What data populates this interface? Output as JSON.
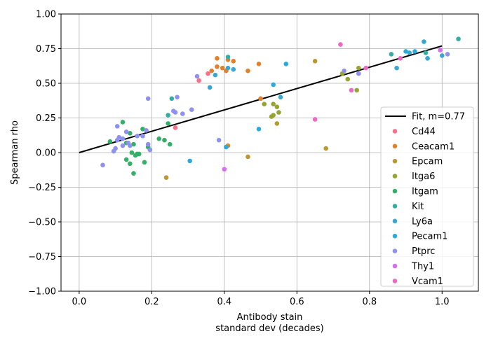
{
  "chart_data": {
    "type": "scatter",
    "title": "",
    "xlabel_lines": [
      "Antibody stain",
      "standard dev (decades)"
    ],
    "ylabel": "Spearman rho",
    "xlim": [
      -0.05,
      1.1
    ],
    "ylim": [
      -1.0,
      1.0
    ],
    "x_ticks": [
      0.0,
      0.2,
      0.4,
      0.6,
      0.8,
      1.0
    ],
    "x_tick_labels": [
      "0.0",
      "0.2",
      "0.4",
      "0.6",
      "0.8",
      "1.0"
    ],
    "y_ticks": [
      -1.0,
      -0.75,
      -0.5,
      -0.25,
      0.0,
      0.25,
      0.5,
      0.75,
      1.0
    ],
    "y_tick_labels": [
      "−1.00",
      "−0.75",
      "−0.50",
      "−0.25",
      "0.00",
      "0.25",
      "0.50",
      "0.75",
      "1.00"
    ],
    "grid": true,
    "legend_position": "center-right",
    "fit": {
      "name": "Fit, m=0.77",
      "slope": 0.77,
      "x": [
        0.0,
        1.0
      ],
      "color": "#000000"
    },
    "series": [
      {
        "name": "Cd44",
        "color": "#f77189",
        "points": [
          [
            0.33,
            0.52
          ],
          [
            0.355,
            0.57
          ],
          [
            0.265,
            0.18
          ]
        ]
      },
      {
        "name": "Ceacam1",
        "color": "#e1812b",
        "points": [
          [
            0.38,
            0.68
          ],
          [
            0.365,
            0.59
          ],
          [
            0.38,
            0.62
          ],
          [
            0.395,
            0.61
          ],
          [
            0.405,
            0.59
          ],
          [
            0.41,
            0.67
          ],
          [
            0.425,
            0.66
          ],
          [
            0.465,
            0.59
          ],
          [
            0.495,
            0.64
          ],
          [
            0.41,
            0.05
          ],
          [
            0.5,
            0.39
          ]
        ]
      },
      {
        "name": "Epcam",
        "color": "#bb9832",
        "points": [
          [
            0.24,
            -0.18
          ],
          [
            0.465,
            -0.03
          ],
          [
            0.65,
            0.66
          ],
          [
            0.68,
            0.03
          ],
          [
            0.545,
            0.21
          ]
        ]
      },
      {
        "name": "Itga6",
        "color": "#97a431",
        "points": [
          [
            0.51,
            0.35
          ],
          [
            0.535,
            0.35
          ],
          [
            0.53,
            0.26
          ],
          [
            0.535,
            0.27
          ],
          [
            0.545,
            0.33
          ],
          [
            0.55,
            0.29
          ],
          [
            0.725,
            0.57
          ],
          [
            0.74,
            0.53
          ],
          [
            0.765,
            0.45
          ],
          [
            0.77,
            0.61
          ]
        ]
      },
      {
        "name": "Itgam",
        "color": "#32b166",
        "points": [
          [
            0.085,
            0.08
          ],
          [
            0.12,
            0.22
          ],
          [
            0.13,
            0.07
          ],
          [
            0.13,
            -0.05
          ],
          [
            0.14,
            -0.08
          ],
          [
            0.14,
            0.14
          ],
          [
            0.145,
            0.0
          ],
          [
            0.15,
            0.06
          ],
          [
            0.15,
            -0.15
          ],
          [
            0.155,
            -0.02
          ],
          [
            0.16,
            -0.01
          ],
          [
            0.165,
            -0.01
          ],
          [
            0.175,
            0.17
          ],
          [
            0.18,
            -0.07
          ],
          [
            0.19,
            0.04
          ],
          [
            0.22,
            0.1
          ],
          [
            0.235,
            0.09
          ],
          [
            0.245,
            0.21
          ],
          [
            0.25,
            0.06
          ]
        ]
      },
      {
        "name": "Kit",
        "color": "#36ada4",
        "points": [
          [
            0.245,
            0.27
          ],
          [
            0.255,
            0.39
          ],
          [
            0.41,
            0.69
          ],
          [
            0.86,
            0.71
          ],
          [
            0.955,
            0.72
          ],
          [
            1.045,
            0.82
          ]
        ]
      },
      {
        "name": "Ly6a",
        "color": "#39a7d0",
        "points": [
          [
            0.36,
            0.47
          ],
          [
            0.375,
            0.56
          ],
          [
            0.41,
            0.61
          ],
          [
            0.425,
            0.6
          ],
          [
            0.555,
            0.4
          ],
          [
            0.875,
            0.61
          ],
          [
            0.95,
            0.8
          ],
          [
            0.96,
            0.68
          ],
          [
            1.0,
            0.7
          ],
          [
            0.91,
            0.72
          ]
        ]
      },
      {
        "name": "Pecam1",
        "color": "#2aabdb",
        "points": [
          [
            0.305,
            -0.06
          ],
          [
            0.405,
            0.04
          ],
          [
            0.495,
            0.17
          ],
          [
            0.535,
            0.49
          ],
          [
            0.57,
            0.64
          ],
          [
            0.9,
            0.73
          ],
          [
            0.925,
            0.73
          ]
        ]
      },
      {
        "name": "Ptprc",
        "color": "#8e91ee",
        "points": [
          [
            0.065,
            -0.09
          ],
          [
            0.095,
            0.01
          ],
          [
            0.1,
            0.03
          ],
          [
            0.105,
            0.09
          ],
          [
            0.105,
            0.19
          ],
          [
            0.11,
            0.11
          ],
          [
            0.12,
            0.05
          ],
          [
            0.12,
            0.1
          ],
          [
            0.13,
            0.15
          ],
          [
            0.135,
            0.07
          ],
          [
            0.14,
            0.05
          ],
          [
            0.16,
            0.12
          ],
          [
            0.175,
            0.12
          ],
          [
            0.185,
            0.16
          ],
          [
            0.19,
            0.06
          ],
          [
            0.19,
            0.39
          ],
          [
            0.195,
            0.02
          ],
          [
            0.26,
            0.3
          ],
          [
            0.265,
            0.29
          ],
          [
            0.27,
            0.4
          ],
          [
            0.285,
            0.28
          ],
          [
            0.31,
            0.31
          ],
          [
            0.325,
            0.55
          ],
          [
            0.385,
            0.09
          ],
          [
            0.73,
            0.59
          ],
          [
            0.77,
            0.57
          ],
          [
            1.015,
            0.71
          ]
        ]
      },
      {
        "name": "Thy1",
        "color": "#d56ff1",
        "points": [
          [
            0.4,
            -0.12
          ],
          [
            0.995,
            0.74
          ]
        ]
      },
      {
        "name": "Vcam1",
        "color": "#ed6ac4",
        "points": [
          [
            0.65,
            0.24
          ],
          [
            0.72,
            0.78
          ],
          [
            0.75,
            0.45
          ],
          [
            0.79,
            0.61
          ],
          [
            0.885,
            0.68
          ]
        ]
      }
    ]
  }
}
